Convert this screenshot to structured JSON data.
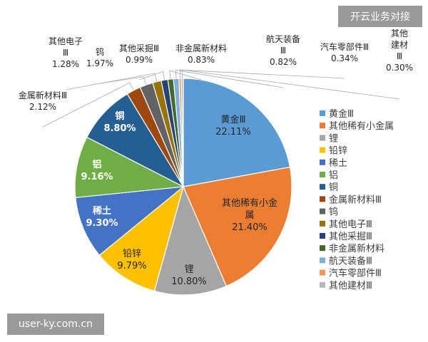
{
  "watermarks": {
    "top": "开云业务对接",
    "bottom": "user-ky.com.cn"
  },
  "chart_data": {
    "type": "pie",
    "title": "",
    "slices": [
      {
        "label": "黄金Ⅲ",
        "value": 22.11,
        "value_label": "22.11%",
        "color": "#5b9bd5"
      },
      {
        "label": "其他稀有小金属",
        "value": 21.4,
        "value_label": "21.40%",
        "color": "#ed7d31"
      },
      {
        "label": "锂",
        "value": 10.8,
        "value_label": "10.80%",
        "color": "#a5a5a5"
      },
      {
        "label": "铅锌",
        "value": 9.79,
        "value_label": "9.79%",
        "color": "#ffc000"
      },
      {
        "label": "稀土",
        "value": 9.3,
        "value_label": "9.30%",
        "color": "#4472c4"
      },
      {
        "label": "铝",
        "value": 9.16,
        "value_label": "9.16%",
        "color": "#70ad47"
      },
      {
        "label": "铜",
        "value": 8.8,
        "value_label": "8.80%",
        "color": "#255e91"
      },
      {
        "label": "金属新材料Ⅲ",
        "value": 2.12,
        "value_label": "2.12%",
        "color": "#9e480e"
      },
      {
        "label": "钨",
        "value": 1.97,
        "value_label": "1.97%",
        "color": "#636363"
      },
      {
        "label": "其他电子Ⅲ",
        "value": 1.28,
        "value_label": "1.28%",
        "color": "#997300"
      },
      {
        "label": "其他采掘Ⅲ",
        "value": 0.99,
        "value_label": "0.99%",
        "color": "#264478"
      },
      {
        "label": "非金属新材料",
        "value": 0.83,
        "value_label": "0.83%",
        "color": "#43682b"
      },
      {
        "label": "航天装备Ⅲ",
        "value": 0.82,
        "value_label": "0.82%",
        "color": "#7cafdd"
      },
      {
        "label": "汽车零部件Ⅲ",
        "value": 0.34,
        "value_label": "0.34%",
        "color": "#f1975a"
      },
      {
        "label": "其他建材Ⅲ",
        "value": 0.3,
        "value_label": "0.30%",
        "color": "#b7b7b7"
      }
    ],
    "legend_position": "right",
    "start_angle": "12 o'clock",
    "direction": "clockwise"
  }
}
